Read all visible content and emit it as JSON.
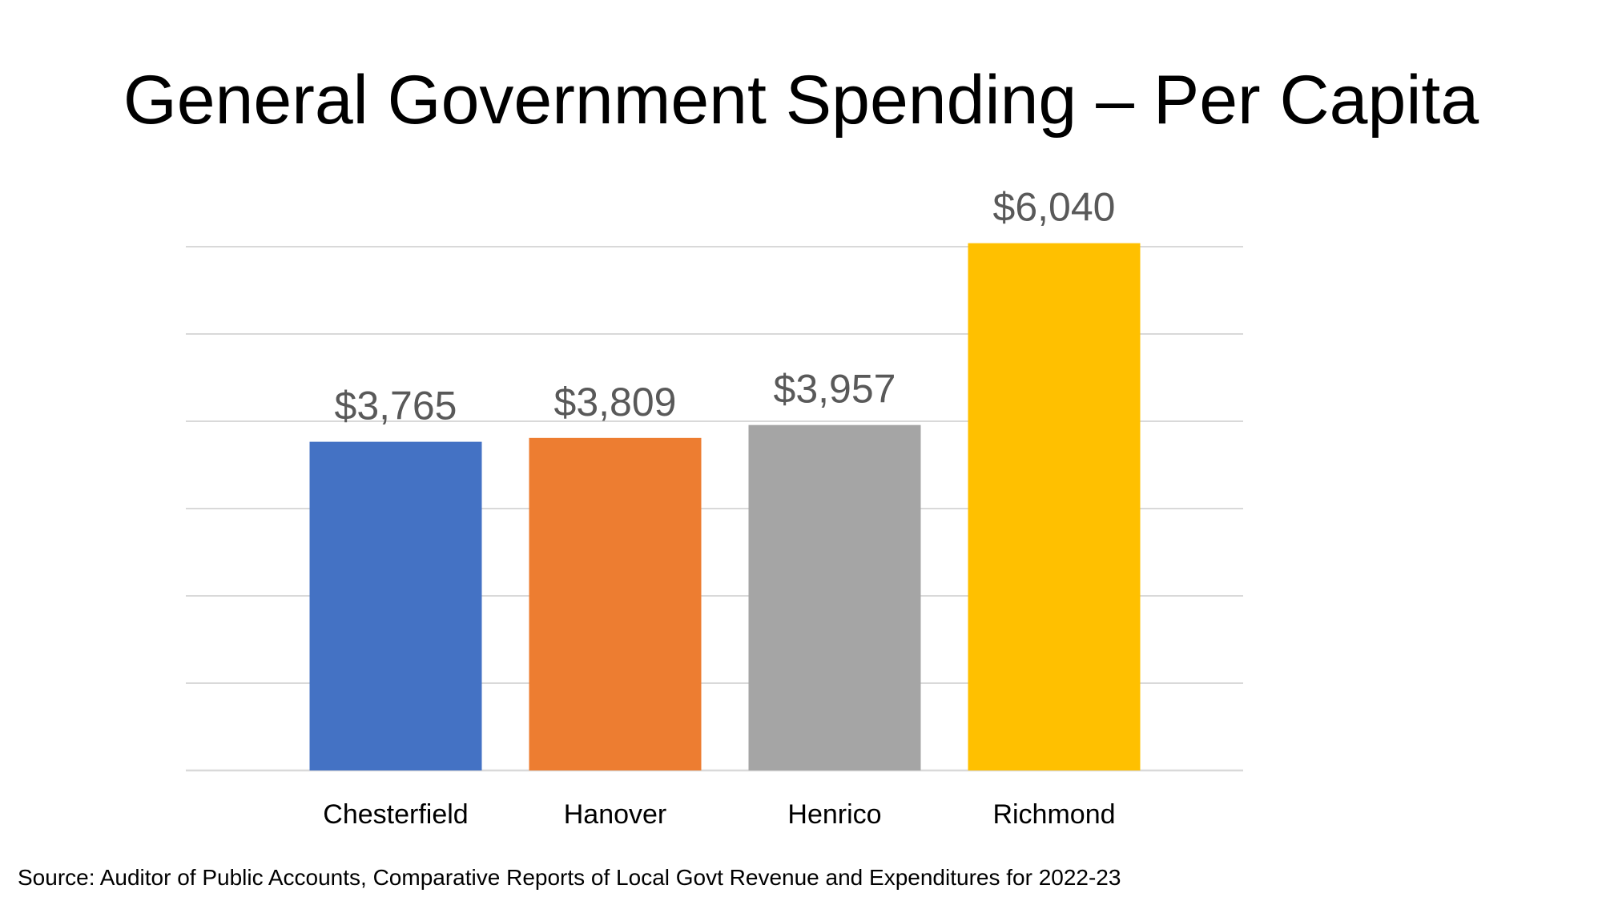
{
  "title": "General Government Spending – Per Capita",
  "source": "Source: Auditor of Public Accounts, Comparative Reports of Local Govt Revenue and Expenditures for 2022-23",
  "chart_data": {
    "type": "bar",
    "title": "General Government Spending – Per Capita",
    "xlabel": "",
    "ylabel": "",
    "ylim": [
      0,
      6000
    ],
    "grid": true,
    "legend": "none",
    "categories": [
      "Chesterfield",
      "Hanover",
      "Henrico",
      "Richmond"
    ],
    "values": [
      3765,
      3809,
      3957,
      6040
    ],
    "data_labels": [
      "$3,765",
      "$3,809",
      "$3,957",
      "$6,040"
    ],
    "colors": [
      "#4472C4",
      "#ED7D31",
      "#A5A5A5",
      "#FFC000"
    ]
  }
}
